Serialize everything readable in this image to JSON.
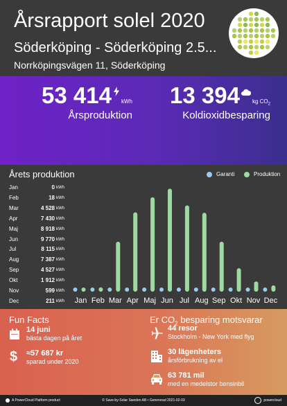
{
  "header": {
    "title": "Årsrapport solel 2020",
    "subtitle": "Söderköping - Söderköping 2.5...",
    "address": "Norrköpingsvägen 11, Söderköping"
  },
  "summary": {
    "production_value": "53 414",
    "production_unit": "kWh",
    "production_label": "Årsproduktion",
    "co2_value": "13 394",
    "co2_unit": "kg CO",
    "co2_unit_sub": "2",
    "co2_label": "Koldioxidbesparing"
  },
  "chart_section": {
    "title": "Årets produktion",
    "legend_guarantee": "Garanti",
    "legend_production": "Produktion",
    "unit": "kWh"
  },
  "chart_data": {
    "type": "bar",
    "categories": [
      "Jan",
      "Feb",
      "Mar",
      "Apr",
      "Maj",
      "Jun",
      "Jul",
      "Aug",
      "Sep",
      "Okt",
      "Nov",
      "Dec"
    ],
    "series": [
      {
        "name": "Produktion",
        "values": [
          0,
          18,
          4528,
          7430,
          8918,
          9770,
          8115,
          7387,
          4527,
          1912,
          599,
          211
        ]
      },
      {
        "name": "Garanti",
        "values": [
          0,
          0,
          0,
          0,
          0,
          0,
          0,
          0,
          0,
          0,
          0,
          0
        ]
      }
    ],
    "value_labels": [
      "0",
      "18",
      "4 528",
      "7 430",
      "8 918",
      "9 770",
      "8 115",
      "7 387",
      "4 527",
      "1 912",
      "599",
      "211"
    ],
    "ylim": [
      0,
      10000
    ],
    "colors": {
      "production": "#9ed8a3",
      "guarantee": "#9ccbed"
    }
  },
  "fun_facts": {
    "title": "Fun Facts",
    "best_day": "14 juni",
    "best_day_label": "bästa dagen på året",
    "saved": "≈57 687 kr",
    "saved_label": "sparad under 2020"
  },
  "co2_equiv": {
    "title_pre": "Er CO",
    "title_sub": "2",
    "title_post": " besparing motsvarar",
    "trips": "44 resor",
    "trips_label": "Stockholm - New York med flyg",
    "apartments": "30 lägenheters",
    "apartments_label": "årsförbrukning av el",
    "miles": "63 781 mil",
    "miles_label": "med en medelstor bensinbil"
  },
  "footer": {
    "left": "A PowerCloud Platform product",
    "center": "© Save-by-Solar Sweden AB • Genererad 2021-02-03",
    "right": "powercloud"
  },
  "colors": {
    "background": "#3a3a3a",
    "purple_start": "#6f22c8",
    "purple_end": "#3a2f8e",
    "orange_start": "#d9614f",
    "orange_end": "#d69b60"
  }
}
